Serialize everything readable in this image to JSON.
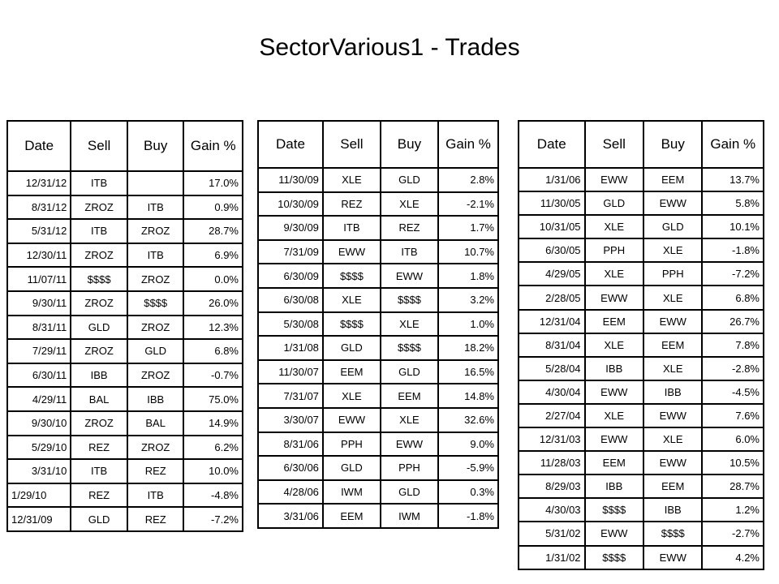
{
  "title": "SectorVarious1 - Trades",
  "headers": [
    "Date",
    "Sell",
    "Buy",
    "Gain %"
  ],
  "tables": [
    {
      "rows": [
        [
          "12/31/12",
          "ITB",
          "",
          "17.0%"
        ],
        [
          "8/31/12",
          "ZROZ",
          "ITB",
          "0.9%"
        ],
        [
          "5/31/12",
          "ITB",
          "ZROZ",
          "28.7%"
        ],
        [
          "12/30/11",
          "ZROZ",
          "ITB",
          "6.9%"
        ],
        [
          "11/07/11",
          "$$$$",
          "ZROZ",
          "0.0%"
        ],
        [
          "9/30/11",
          "ZROZ",
          "$$$$",
          "26.0%"
        ],
        [
          "8/31/11",
          "GLD",
          "ZROZ",
          "12.3%"
        ],
        [
          "7/29/11",
          "ZROZ",
          "GLD",
          "6.8%"
        ],
        [
          "6/30/11",
          "IBB",
          "ZROZ",
          "-0.7%"
        ],
        [
          "4/29/11",
          "BAL",
          "IBB",
          "75.0%"
        ],
        [
          "9/30/10",
          "ZROZ",
          "BAL",
          "14.9%"
        ],
        [
          "5/29/10",
          "REZ",
          "ZROZ",
          "6.2%"
        ],
        [
          "3/31/10",
          "ITB",
          "REZ",
          "10.0%"
        ],
        [
          "1/29/10",
          "REZ",
          "ITB",
          "-4.8%"
        ],
        [
          "12/31/09",
          "GLD",
          "REZ",
          "-7.2%"
        ]
      ]
    },
    {
      "rows": [
        [
          "11/30/09",
          "XLE",
          "GLD",
          "2.8%"
        ],
        [
          "10/30/09",
          "REZ",
          "XLE",
          "-2.1%"
        ],
        [
          "9/30/09",
          "ITB",
          "REZ",
          "1.7%"
        ],
        [
          "7/31/09",
          "EWW",
          "ITB",
          "10.7%"
        ],
        [
          "6/30/09",
          "$$$$",
          "EWW",
          "1.8%"
        ],
        [
          "6/30/08",
          "XLE",
          "$$$$",
          "3.2%"
        ],
        [
          "5/30/08",
          "$$$$",
          "XLE",
          "1.0%"
        ],
        [
          "1/31/08",
          "GLD",
          "$$$$",
          "18.2%"
        ],
        [
          "11/30/07",
          "EEM",
          "GLD",
          "16.5%"
        ],
        [
          "7/31/07",
          "XLE",
          "EEM",
          "14.8%"
        ],
        [
          "3/30/07",
          "EWW",
          "XLE",
          "32.6%"
        ],
        [
          "8/31/06",
          "PPH",
          "EWW",
          "9.0%"
        ],
        [
          "6/30/06",
          "GLD",
          "PPH",
          "-5.9%"
        ],
        [
          "4/28/06",
          "IWM",
          "GLD",
          "0.3%"
        ],
        [
          "3/31/06",
          "EEM",
          "IWM",
          "-1.8%"
        ]
      ]
    },
    {
      "rows": [
        [
          "1/31/06",
          "EWW",
          "EEM",
          "13.7%"
        ],
        [
          "11/30/05",
          "GLD",
          "EWW",
          "5.8%"
        ],
        [
          "10/31/05",
          "XLE",
          "GLD",
          "10.1%"
        ],
        [
          "6/30/05",
          "PPH",
          "XLE",
          "-1.8%"
        ],
        [
          "4/29/05",
          "XLE",
          "PPH",
          "-7.2%"
        ],
        [
          "2/28/05",
          "EWW",
          "XLE",
          "6.8%"
        ],
        [
          "12/31/04",
          "EEM",
          "EWW",
          "26.7%"
        ],
        [
          "8/31/04",
          "XLE",
          "EEM",
          "7.8%"
        ],
        [
          "5/28/04",
          "IBB",
          "XLE",
          "-2.8%"
        ],
        [
          "4/30/04",
          "EWW",
          "IBB",
          "-4.5%"
        ],
        [
          "2/27/04",
          "XLE",
          "EWW",
          "7.6%"
        ],
        [
          "12/31/03",
          "EWW",
          "XLE",
          "6.0%"
        ],
        [
          "11/28/03",
          "EEM",
          "EWW",
          "10.5%"
        ],
        [
          "8/29/03",
          "IBB",
          "EEM",
          "28.7%"
        ],
        [
          "4/30/03",
          "$$$$",
          "IBB",
          "1.2%"
        ],
        [
          "5/31/02",
          "EWW",
          "$$$$",
          "-2.7%"
        ],
        [
          "1/31/02",
          "$$$$",
          "EWW",
          "4.2%"
        ]
      ]
    }
  ]
}
